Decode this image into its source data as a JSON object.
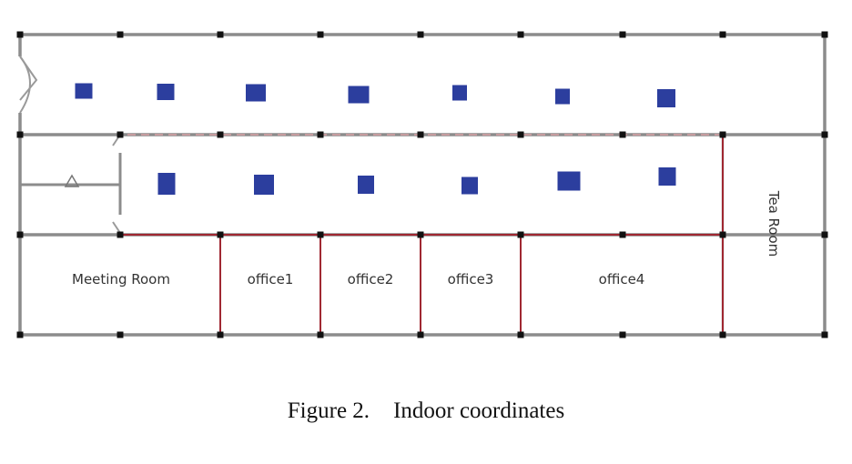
{
  "diagram": {
    "rooms": {
      "meeting_room": "Meeting Room",
      "office1": "office1",
      "office2": "office2",
      "office3": "office3",
      "office4": "office4",
      "tea_room": "Tea Room"
    },
    "colors": {
      "wall": "#8c8c8c",
      "partition": "#a02832",
      "grid_point": "#111111",
      "access_point": "#2c3e9e",
      "background": "#ffffff"
    },
    "icons": {
      "door": "door-swing-icon",
      "marker": "triangle-icon"
    }
  },
  "caption": {
    "figure_number": "Figure 2.",
    "title": "Indoor coordinates"
  }
}
